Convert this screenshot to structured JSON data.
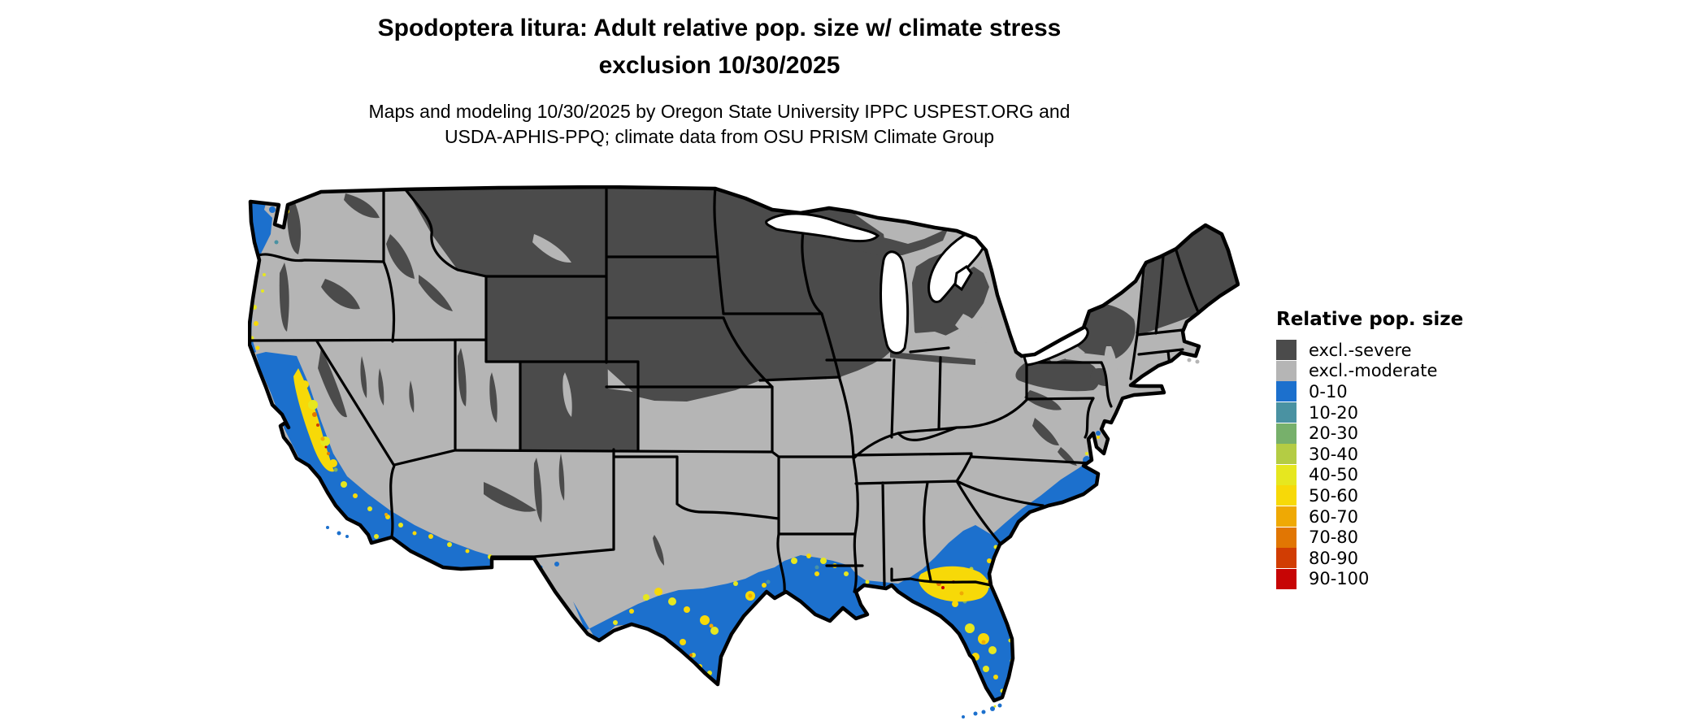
{
  "title": {
    "line1": "Spodoptera litura: Adult relative pop. size w/ climate stress",
    "line2": "exclusion 10/30/2025"
  },
  "subtitle": {
    "line1": "Maps and modeling 10/30/2025 by Oregon State University IPPC USPEST.ORG and",
    "line2": "USDA-APHIS-PPQ; climate data from OSU PRISM Climate Group"
  },
  "legend": {
    "title": "Relative pop. size",
    "items": [
      {
        "label": "excl.-severe",
        "color": "#4b4b4b"
      },
      {
        "label": "excl.-moderate",
        "color": "#b5b5b5"
      },
      {
        "label": "0-10",
        "color": "#1c70cd"
      },
      {
        "label": "10-20",
        "color": "#4a92a2"
      },
      {
        "label": "20-30",
        "color": "#77b06b"
      },
      {
        "label": "30-40",
        "color": "#b4cc44"
      },
      {
        "label": "40-50",
        "color": "#e6e71f"
      },
      {
        "label": "50-60",
        "color": "#f7d908"
      },
      {
        "label": "60-70",
        "color": "#efa904"
      },
      {
        "label": "70-80",
        "color": "#e17603"
      },
      {
        "label": "80-90",
        "color": "#d13d03"
      },
      {
        "label": "90-100",
        "color": "#c70505"
      }
    ]
  },
  "map": {
    "region": "Contiguous United States",
    "date_shown": "10/30/2025",
    "species": "Spodoptera litura",
    "fills": {
      "land_moderate": "#b5b5b5",
      "excluded_severe": "#4b4b4b",
      "pop_0_10": "#1c70cd",
      "pop_10_20": "#4a92a2",
      "pop_20_30": "#77b06b",
      "pop_30_40": "#b4cc44",
      "pop_40_50": "#e6e71f",
      "pop_50_60": "#f7d908",
      "pop_60_70": "#efa904",
      "pop_70_80": "#e17603",
      "pop_80_90": "#d13d03",
      "pop_90_100": "#c70505",
      "water": "#ffffff",
      "border": "#000000"
    }
  }
}
